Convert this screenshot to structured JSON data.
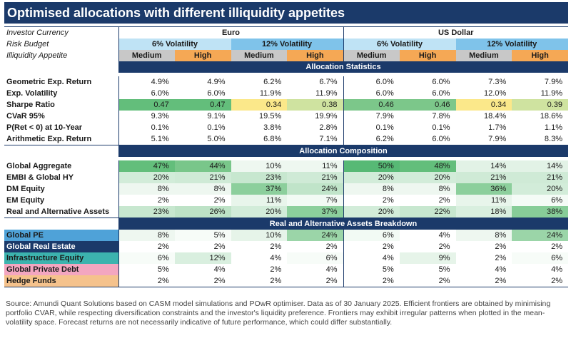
{
  "title": "Optimised allocations with different illiquidity appetites",
  "header": {
    "investor_currency_label": "Investor Currency",
    "risk_budget_label": "Risk Budget",
    "illiquidity_label": "Illiquidity Appetite",
    "currencies": [
      "Euro",
      "US Dollar"
    ],
    "vol_6": "6% Volatility",
    "vol_12": "12% Volatility",
    "medium": "Medium",
    "high": "High"
  },
  "sections": {
    "stats": "Allocation Statistics",
    "composition": "Allocation Composition",
    "breakdown": "Real and Alternative Assets Breakdown"
  },
  "rows": {
    "geo": {
      "label": "Geometric Exp. Return",
      "values": [
        "4.9%",
        "4.9%",
        "6.2%",
        "6.7%",
        "6.0%",
        "6.0%",
        "7.3%",
        "7.9%"
      ]
    },
    "vol": {
      "label": "Exp. Volatility",
      "values": [
        "6.0%",
        "6.0%",
        "11.9%",
        "11.9%",
        "6.0%",
        "6.0%",
        "12.0%",
        "11.9%"
      ]
    },
    "sharpe": {
      "label": "Sharpe Ratio",
      "values": [
        "0.47",
        "0.47",
        "0.34",
        "0.38",
        "0.46",
        "0.46",
        "0.34",
        "0.39"
      ]
    },
    "cvar": {
      "label": "CVaR 95%",
      "values": [
        "9.3%",
        "9.1%",
        "19.5%",
        "19.9%",
        "7.9%",
        "7.8%",
        "18.4%",
        "18.6%"
      ]
    },
    "pret": {
      "label": "P(Ret < 0) at 10-Year",
      "values": [
        "0.1%",
        "0.1%",
        "3.8%",
        "2.8%",
        "0.1%",
        "0.1%",
        "1.7%",
        "1.1%"
      ]
    },
    "arith": {
      "label": "Arithmetic Exp. Return",
      "values": [
        "5.1%",
        "5.0%",
        "6.8%",
        "7.1%",
        "6.2%",
        "6.0%",
        "7.9%",
        "8.3%"
      ]
    },
    "gagg": {
      "label": "Global Aggregate",
      "values": [
        "47%",
        "44%",
        "10%",
        "11%",
        "50%",
        "48%",
        "14%",
        "14%"
      ]
    },
    "embi": {
      "label": "EMBI & Global HY",
      "values": [
        "20%",
        "21%",
        "23%",
        "21%",
        "20%",
        "20%",
        "21%",
        "21%"
      ]
    },
    "dm": {
      "label": "DM Equity",
      "values": [
        "8%",
        "8%",
        "37%",
        "24%",
        "8%",
        "8%",
        "36%",
        "20%"
      ]
    },
    "em": {
      "label": "EM Equity",
      "values": [
        "2%",
        "2%",
        "11%",
        "7%",
        "2%",
        "2%",
        "11%",
        "6%"
      ]
    },
    "ra": {
      "label": "Real and Alternative Assets",
      "values": [
        "23%",
        "26%",
        "20%",
        "37%",
        "20%",
        "22%",
        "18%",
        "38%"
      ]
    },
    "pe": {
      "label": "Global PE",
      "values": [
        "8%",
        "5%",
        "10%",
        "24%",
        "6%",
        "4%",
        "8%",
        "24%"
      ]
    },
    "re": {
      "label": "Global Real Estate",
      "values": [
        "2%",
        "2%",
        "2%",
        "2%",
        "2%",
        "2%",
        "2%",
        "2%"
      ]
    },
    "ie": {
      "label": "Infrastructure Equity",
      "values": [
        "6%",
        "12%",
        "4%",
        "6%",
        "4%",
        "9%",
        "2%",
        "6%"
      ]
    },
    "pd": {
      "label": "Global Private Debt",
      "values": [
        "5%",
        "4%",
        "2%",
        "4%",
        "5%",
        "5%",
        "4%",
        "4%"
      ]
    },
    "hf": {
      "label": "Hedge Funds",
      "values": [
        "2%",
        "2%",
        "2%",
        "2%",
        "2%",
        "2%",
        "2%",
        "2%"
      ]
    }
  },
  "colors": {
    "navy": "#1b3a6a",
    "green_strong": "#63be7b",
    "yellow": "#fbe88a"
  },
  "source": "Source: Amundi Quant Solutions based on CASM model simulations and POwR optimiser. Data as of 30 January 2025. Efficient frontiers are obtained by minimising portfolio CVAR, while respecting diversification constraints and the investor's liquidity preference. Frontiers may exhibit irregular patterns when plotted in the mean-volatility space. Forecast returns are not necessarily indicative of future performance, which could differ substantially."
}
